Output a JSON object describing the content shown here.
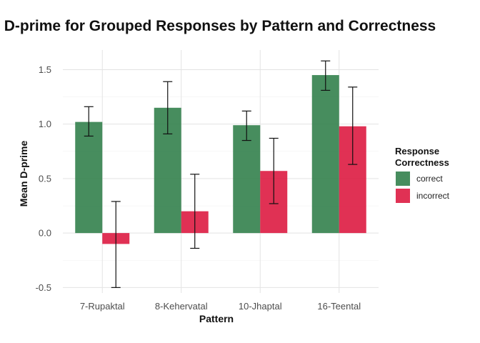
{
  "chart_data": {
    "type": "bar",
    "title": "D-prime for Grouped Responses by Pattern and Correctness",
    "xlabel": "Pattern",
    "ylabel": "Mean D-prime",
    "categories": [
      "7-Rupaktal",
      "8-Kehervatal",
      "10-Jhaptal",
      "16-Teental"
    ],
    "series": [
      {
        "name": "correct",
        "color": "#2e7d48",
        "values": [
          1.02,
          1.15,
          0.99,
          1.45
        ],
        "err_low": [
          0.89,
          0.91,
          0.85,
          1.31
        ],
        "err_high": [
          1.16,
          1.39,
          1.12,
          1.58
        ]
      },
      {
        "name": "incorrect",
        "color": "#dc143c",
        "values": [
          -0.1,
          0.2,
          0.57,
          0.98
        ],
        "err_low": [
          -0.5,
          -0.14,
          0.27,
          0.63
        ],
        "err_high": [
          0.29,
          0.54,
          0.87,
          1.34
        ]
      }
    ],
    "ylim": [
      -0.55,
      1.68
    ],
    "yticks": [
      "-0.5",
      "0.0",
      "0.5",
      "1.0",
      "1.5"
    ],
    "grid": true,
    "legend": {
      "title_line1": "Response",
      "title_line2": "Correctness",
      "placement": "right"
    }
  }
}
